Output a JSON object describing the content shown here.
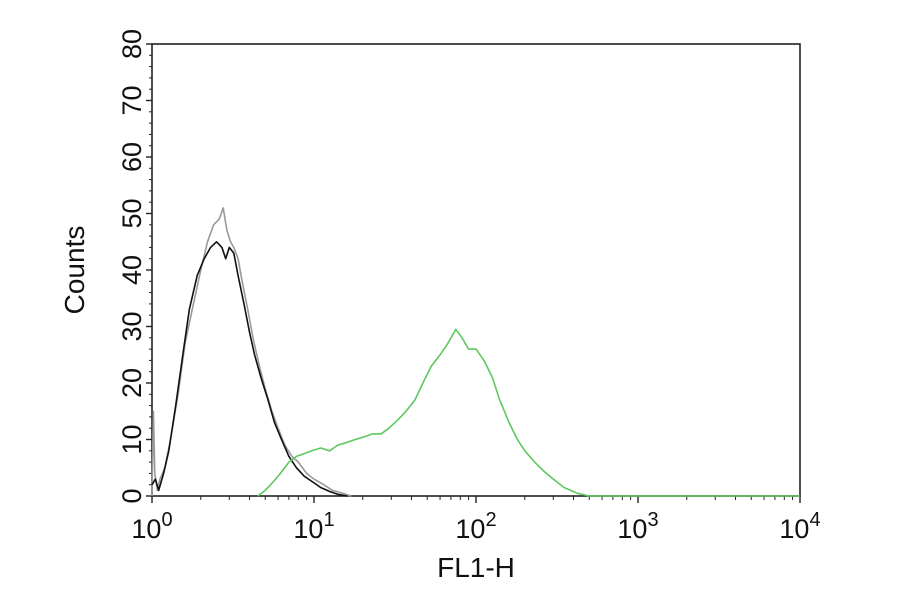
{
  "chart_data": {
    "type": "line",
    "xlabel": "FL1-H",
    "ylabel": "Counts",
    "x_scale": "log",
    "xlim": [
      1,
      10000
    ],
    "ylim": [
      0,
      80
    ],
    "grid": false,
    "x_ticks": [
      {
        "value": 1,
        "base": "10",
        "exp": "0"
      },
      {
        "value": 10,
        "base": "10",
        "exp": "1"
      },
      {
        "value": 100,
        "base": "10",
        "exp": "2"
      },
      {
        "value": 1000,
        "base": "10",
        "exp": "3"
      },
      {
        "value": 10000,
        "base": "10",
        "exp": "4"
      }
    ],
    "y_ticks": [
      0,
      10,
      20,
      30,
      40,
      50,
      60,
      70,
      80
    ],
    "series": [
      {
        "color": "#9a9a9a",
        "x": [
          1,
          1.02,
          1.04,
          1.08,
          1.12,
          1.2,
          1.3,
          1.45,
          1.6,
          1.8,
          2.0,
          2.2,
          2.4,
          2.6,
          2.75,
          2.9,
          3.05,
          3.2,
          3.4,
          3.6,
          3.9,
          4.2,
          4.6,
          5.0,
          5.5,
          6.0,
          6.6,
          7.3,
          8.0,
          9.0,
          10.0,
          11.5,
          13.0,
          15.0,
          17.0
        ],
        "y": [
          0,
          15,
          4,
          1,
          3,
          5,
          10,
          18,
          27,
          34,
          40,
          45,
          48,
          49,
          51,
          47,
          45,
          44,
          42,
          38,
          33,
          28,
          23,
          19,
          15,
          12,
          9,
          7,
          6,
          4,
          3,
          2,
          1,
          0.5,
          0
        ]
      },
      {
        "color": "#111111",
        "x": [
          1,
          1.05,
          1.1,
          1.18,
          1.27,
          1.4,
          1.55,
          1.7,
          1.9,
          2.1,
          2.3,
          2.5,
          2.7,
          2.85,
          3.0,
          3.2,
          3.4,
          3.7,
          4.0,
          4.3,
          4.7,
          5.2,
          5.7,
          6.3,
          7.0,
          7.8,
          8.7,
          9.8,
          11.0,
          12.5,
          14.0,
          16.0
        ],
        "y": [
          2,
          3,
          1,
          4,
          8,
          16,
          25,
          33,
          39,
          42,
          44,
          45,
          44,
          42,
          44,
          43,
          39,
          34,
          29,
          25,
          21,
          17,
          13,
          10,
          7,
          5,
          3.5,
          2.5,
          1.5,
          0.8,
          0.3,
          0
        ]
      },
      {
        "color": "#5ec85e",
        "x": [
          4.5,
          5.0,
          5.6,
          6.2,
          7.0,
          7.8,
          8.7,
          9.7,
          11.0,
          12.5,
          14.0,
          16.0,
          18.0,
          20.5,
          23.0,
          26.0,
          29.0,
          33.0,
          37.0,
          42.0,
          47.0,
          53.0,
          60.0,
          67.0,
          75.0,
          82.0,
          90.0,
          100.0,
          112.0,
          126.0,
          140.0,
          160.0,
          180.0,
          200.0,
          230.0,
          260.0,
          300.0,
          350.0,
          420.0,
          500.0,
          700.0,
          1000.0,
          3000.0,
          10000.0
        ],
        "y": [
          0,
          1,
          2.5,
          4,
          6,
          7,
          7.5,
          8,
          8.5,
          8,
          9,
          9.5,
          10,
          10.5,
          11,
          11,
          12,
          13.5,
          15,
          17,
          20,
          23,
          25,
          27,
          29.5,
          28,
          26,
          26,
          24,
          21,
          17,
          13,
          10,
          8,
          6,
          4.5,
          3,
          1.5,
          0.5,
          0,
          0,
          0,
          0,
          0
        ]
      }
    ]
  }
}
